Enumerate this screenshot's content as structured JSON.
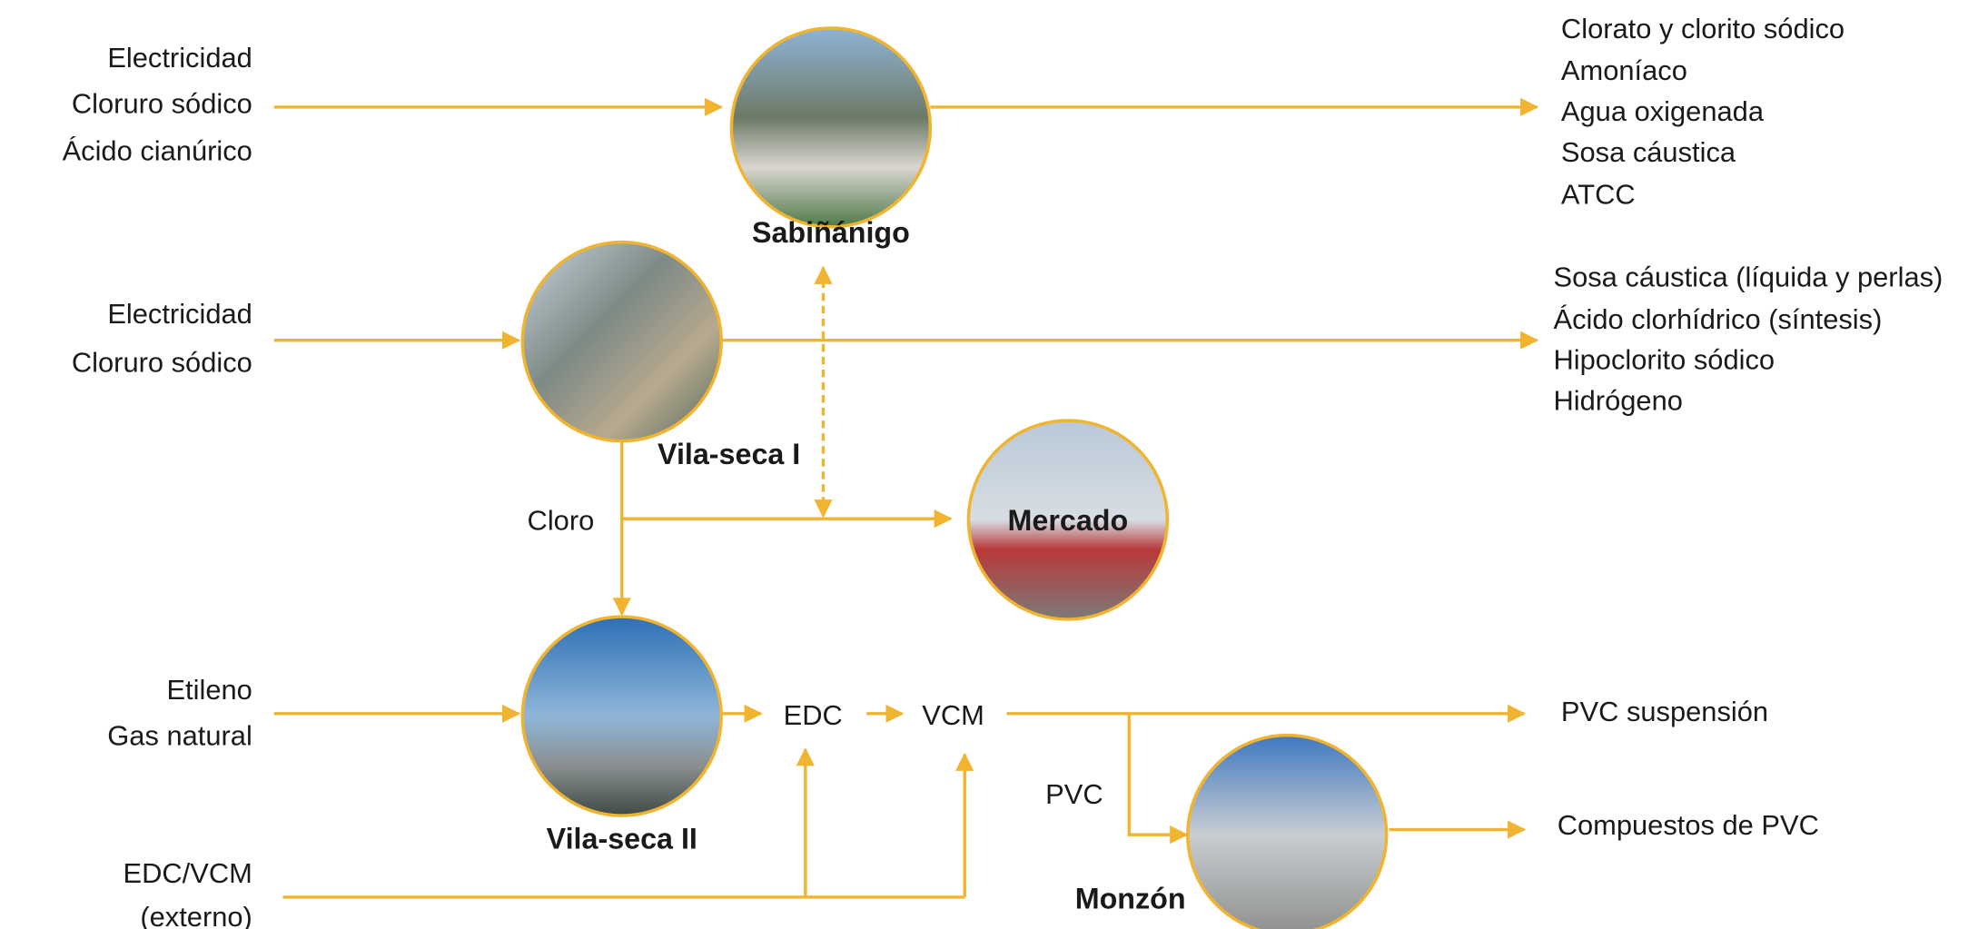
{
  "plants": [
    {
      "label": "Sabiñánigo"
    },
    {
      "label": "Vila-seca I"
    },
    {
      "label": "Mercado"
    },
    {
      "label": "Vila-seca II"
    },
    {
      "label": "Monzón"
    }
  ],
  "inputs": [
    [
      "Electricidad",
      "Cloruro sódico",
      "Ácido cianúrico"
    ],
    [
      "Electricidad",
      "Cloruro sódico"
    ],
    [
      "Etileno",
      "Gas natural"
    ],
    [
      "EDC/VCM",
      "(externo)"
    ]
  ],
  "outputs": [
    [
      "Clorato y clorito sódico",
      "Amoníaco",
      "Agua oxigenada",
      "Sosa cáustica",
      "ATCC"
    ],
    [
      "Sosa cáustica (líquida y perlas)",
      "Ácido clorhídrico (síntesis)",
      "Hipoclorito sódico",
      "Hidrógeno"
    ],
    [
      "PVC suspensión"
    ],
    [
      "Compuestos de PVC"
    ]
  ],
  "intermediates": [
    "Cloro",
    "EDC",
    "VCM",
    "PVC"
  ]
}
